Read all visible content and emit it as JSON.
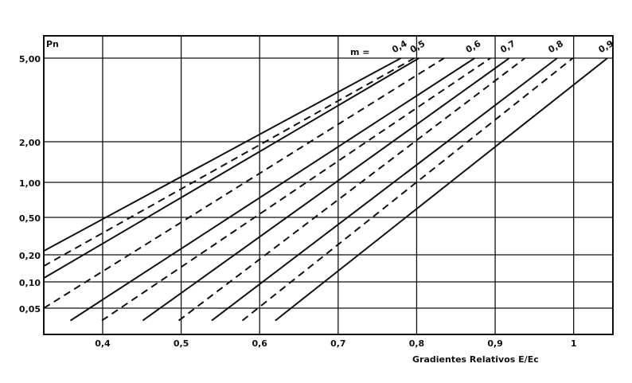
{
  "chart_data": {
    "type": "line",
    "y_label": "Pn",
    "x_label": "Gradientes Relativos E/Ec",
    "series_label": "m =",
    "xlim": [
      0.325,
      1.05
    ],
    "ylim": [
      0.025,
      6.4
    ],
    "log_y": true,
    "grid": true,
    "xticks": [
      {
        "value": 0.4,
        "label": "0,4"
      },
      {
        "value": 0.5,
        "label": "0,5"
      },
      {
        "value": 0.6,
        "label": "0,6"
      },
      {
        "value": 0.7,
        "label": "0,7"
      },
      {
        "value": 0.8,
        "label": "0,8"
      },
      {
        "value": 0.9,
        "label": "0,9"
      },
      1
    ],
    "yticks": [
      {
        "value": 0.05,
        "label": "0,05"
      },
      {
        "value": 0.1,
        "label": "0,10"
      },
      {
        "value": 0.2,
        "label": "0,20"
      },
      {
        "value": 0.5,
        "label": "0,50"
      },
      {
        "value": 1,
        "label": "1,00"
      },
      {
        "value": 2,
        "label": "2,00"
      },
      {
        "value": 5,
        "label": "5,00"
      }
    ],
    "series": [
      {
        "name": "0,4",
        "style": "solid",
        "color": "#111111",
        "x": [
          0.325,
          0.78
        ],
        "values": [
          0.22,
          5
        ]
      },
      {
        "style": "dashed",
        "color": "#111111",
        "x": [
          0.325,
          0.797
        ],
        "values": [
          0.15,
          5
        ]
      },
      {
        "name": "0,5",
        "style": "solid",
        "color": "#111111",
        "x": [
          0.325,
          0.803
        ],
        "values": [
          0.11,
          5
        ]
      },
      {
        "style": "dashed",
        "color": "#111111",
        "x": [
          0.325,
          0.835
        ],
        "values": [
          0.05,
          5
        ]
      },
      {
        "name": "0,6",
        "style": "solid",
        "color": "#111111",
        "x": [
          0.359,
          0.874
        ],
        "values": [
          0.036,
          5
        ]
      },
      {
        "style": "dashed",
        "color": "#111111",
        "x": [
          0.399,
          0.894
        ],
        "values": [
          0.036,
          5
        ]
      },
      {
        "name": "0,7",
        "style": "solid",
        "color": "#111111",
        "x": [
          0.451,
          0.918
        ],
        "values": [
          0.036,
          5
        ]
      },
      {
        "style": "dashed",
        "color": "#111111",
        "x": [
          0.497,
          0.938
        ],
        "values": [
          0.036,
          5
        ]
      },
      {
        "name": "0,8",
        "style": "solid",
        "color": "#111111",
        "x": [
          0.539,
          0.979
        ],
        "values": [
          0.036,
          5
        ]
      },
      {
        "style": "dashed",
        "color": "#111111",
        "x": [
          0.578,
          0.999
        ],
        "values": [
          0.036,
          5
        ]
      },
      {
        "name": "0,9",
        "style": "solid",
        "color": "#111111",
        "x": [
          0.62,
          1.043
        ],
        "values": [
          0.036,
          5
        ]
      }
    ]
  }
}
